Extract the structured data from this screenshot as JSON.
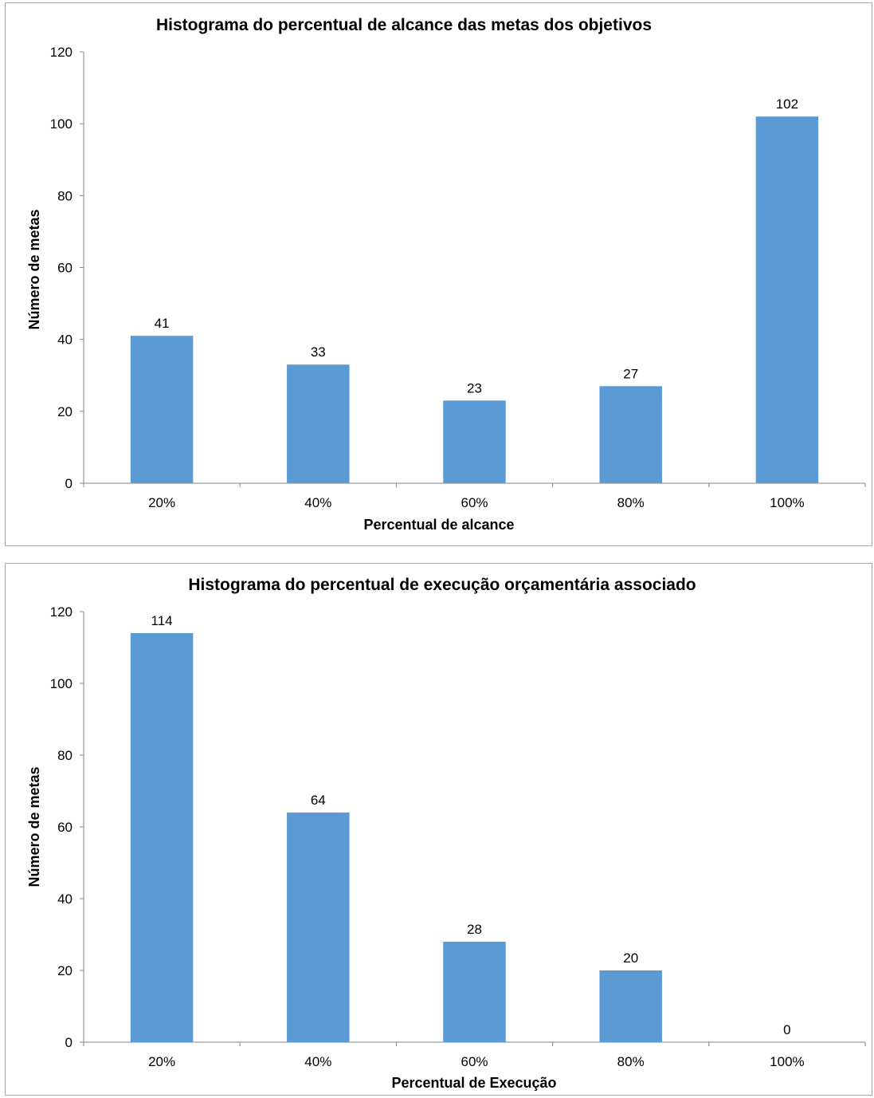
{
  "chart_data": [
    {
      "type": "bar",
      "title": "Histograma do percentual de alcance das metas dos objetivos",
      "xlabel": "Percentual de alcance",
      "ylabel": "Número de metas",
      "categories": [
        "20%",
        "40%",
        "60%",
        "80%",
        "100%"
      ],
      "values": [
        41,
        33,
        23,
        27,
        102
      ],
      "data_labels": [
        "41",
        "33",
        "23",
        "27",
        "102"
      ],
      "ylim": [
        0,
        120
      ],
      "yticks": [
        "0",
        "20",
        "40",
        "60",
        "80",
        "100",
        "120"
      ],
      "grid": false,
      "legend": "none",
      "bar_color": "#5b9bd5"
    },
    {
      "type": "bar",
      "title": "Histograma do percentual de execução orçamentária associado",
      "xlabel": "Percentual de Execução",
      "ylabel": "Número de metas",
      "categories": [
        "20%",
        "40%",
        "60%",
        "80%",
        "100%"
      ],
      "values": [
        114,
        64,
        28,
        20,
        0
      ],
      "data_labels": [
        "114",
        "64",
        "28",
        "20",
        "0"
      ],
      "ylim": [
        0,
        120
      ],
      "yticks": [
        "0",
        "20",
        "40",
        "60",
        "80",
        "100",
        "120"
      ],
      "grid": false,
      "legend": "none",
      "bar_color": "#5b9bd5"
    }
  ]
}
